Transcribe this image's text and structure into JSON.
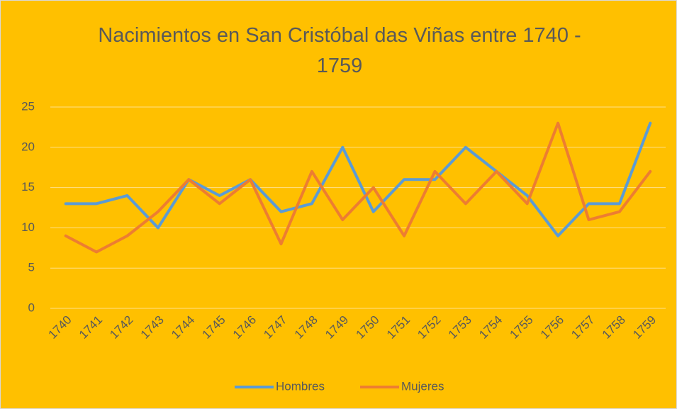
{
  "chart_data": {
    "type": "line",
    "title": "Nacimientos en San Cristóbal das Viñas entre 1740 - 1759",
    "categories": [
      "1740",
      "1741",
      "1742",
      "1743",
      "1744",
      "1745",
      "1746",
      "1747",
      "1748",
      "1749",
      "1750",
      "1751",
      "1752",
      "1753",
      "1754",
      "1755",
      "1756",
      "1757",
      "1758",
      "1759"
    ],
    "series": [
      {
        "name": "Hombres",
        "color": "#5B9BD5",
        "values": [
          13,
          13,
          14,
          10,
          16,
          14,
          16,
          12,
          13,
          20,
          12,
          16,
          16,
          20,
          17,
          14,
          9,
          13,
          13,
          23
        ]
      },
      {
        "name": "Mujeres",
        "color": "#ED7D31",
        "values": [
          9,
          7,
          9,
          12,
          16,
          13,
          16,
          8,
          17,
          11,
          15,
          9,
          17,
          13,
          17,
          13,
          23,
          11,
          12,
          17
        ]
      }
    ],
    "ylim": [
      0,
      25
    ],
    "yticks": [
      0,
      5,
      10,
      15,
      20,
      25
    ],
    "grid": true,
    "legend": "bottom"
  }
}
